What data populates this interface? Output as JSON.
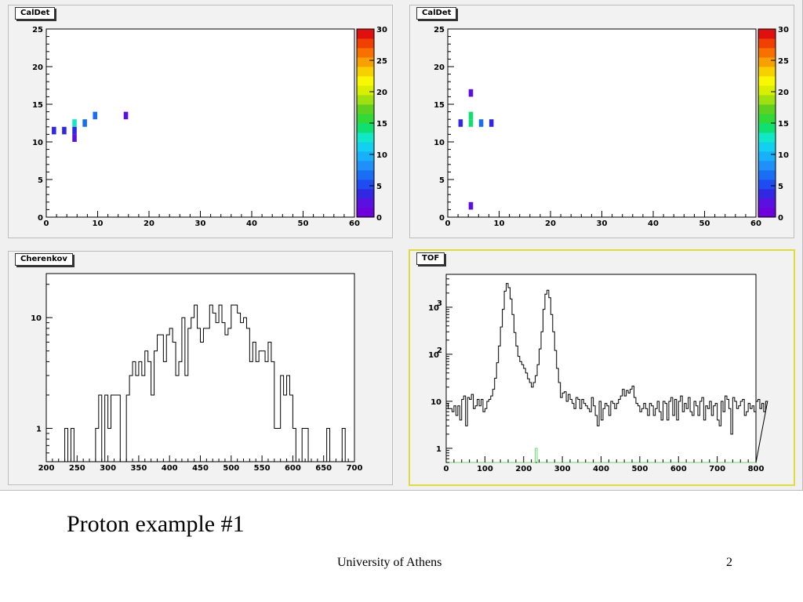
{
  "slide": {
    "title": "Proton example #1",
    "footer": "University of Athens",
    "page_number": "2"
  },
  "pads": {
    "caldet_left": {
      "label": "CalDet"
    },
    "caldet_right": {
      "label": "CalDet"
    },
    "cherenkov": {
      "label": "Cherenkov"
    },
    "tof": {
      "label": "TOF"
    }
  },
  "palette": [
    "#6e00dc",
    "#5a10e0",
    "#3228e4",
    "#1e4cf0",
    "#1a6ef4",
    "#1e90f8",
    "#18b0f8",
    "#14d0f0",
    "#10e8c8",
    "#10e070",
    "#30d838",
    "#60d020",
    "#a0e010",
    "#d8f000",
    "#f8f800",
    "#f8d000",
    "#f8a000",
    "#f87000",
    "#f04000",
    "#e01010"
  ],
  "chart_data": [
    {
      "type": "heatmap",
      "title": "CalDet",
      "xlim": [
        0,
        60
      ],
      "ylim": [
        0,
        25
      ],
      "x_ticks": [
        0,
        10,
        20,
        30,
        40,
        50,
        60
      ],
      "y_ticks": [
        0,
        5,
        10,
        15,
        20,
        25
      ],
      "z_range": [
        0,
        30
      ],
      "z_ticks": [
        0,
        5,
        10,
        15,
        20,
        25,
        30
      ],
      "cells": [
        {
          "x": 1,
          "y": 11,
          "z": 3
        },
        {
          "x": 3,
          "y": 11,
          "z": 3
        },
        {
          "x": 5,
          "y": 12,
          "z": 12
        },
        {
          "x": 5,
          "y": 11,
          "z": 3
        },
        {
          "x": 5,
          "y": 10,
          "z": 2
        },
        {
          "x": 7,
          "y": 12,
          "z": 6
        },
        {
          "x": 9,
          "y": 13,
          "z": 6
        },
        {
          "x": 15,
          "y": 13,
          "z": 2
        }
      ]
    },
    {
      "type": "heatmap",
      "title": "CalDet",
      "xlim": [
        0,
        60
      ],
      "ylim": [
        0,
        25
      ],
      "x_ticks": [
        0,
        10,
        20,
        30,
        40,
        50,
        60
      ],
      "y_ticks": [
        0,
        5,
        10,
        15,
        20,
        25
      ],
      "z_range": [
        0,
        30
      ],
      "z_ticks": [
        0,
        5,
        10,
        15,
        20,
        25,
        30
      ],
      "cells": [
        {
          "x": 4,
          "y": 16,
          "z": 2
        },
        {
          "x": 2,
          "y": 12,
          "z": 3
        },
        {
          "x": 4,
          "y": 13,
          "z": 14
        },
        {
          "x": 4,
          "y": 12,
          "z": 14
        },
        {
          "x": 6,
          "y": 12,
          "z": 6
        },
        {
          "x": 8,
          "y": 12,
          "z": 3
        },
        {
          "x": 4,
          "y": 1,
          "z": 2
        }
      ]
    },
    {
      "type": "histogram",
      "title": "Cherenkov",
      "log_y": true,
      "xlim": [
        200,
        700
      ],
      "ylim": [
        0.5,
        25
      ],
      "x_ticks": [
        200,
        250,
        300,
        350,
        400,
        450,
        500,
        550,
        600,
        650,
        700
      ],
      "y_ticks": [
        1,
        10
      ],
      "bin_width": 5,
      "values": [
        0,
        0,
        0,
        0,
        0,
        0,
        1,
        0,
        1,
        0,
        0,
        0,
        0,
        0,
        0,
        0,
        1,
        2,
        0,
        2,
        1,
        2,
        2,
        2,
        0,
        0,
        2,
        3,
        4,
        3,
        4,
        3,
        5,
        4,
        2,
        5,
        7,
        7,
        4,
        7,
        8,
        6,
        3,
        4,
        10,
        3,
        8,
        10,
        13,
        8,
        6,
        8,
        8,
        13,
        11,
        9,
        13,
        9,
        7,
        8,
        13,
        13,
        11,
        9,
        10,
        8,
        4,
        6,
        4,
        5,
        5,
        4,
        6,
        4,
        1,
        1,
        3,
        2,
        3,
        2,
        1,
        0,
        0,
        1,
        1,
        0,
        0,
        0,
        0,
        0,
        0,
        1,
        0,
        0,
        0,
        0,
        1,
        0,
        0,
        0
      ],
      "color": "#000000"
    },
    {
      "type": "histogram",
      "title": "TOF",
      "log_y": true,
      "xlim": [
        0,
        800
      ],
      "ylim": [
        0.5,
        5000
      ],
      "x_ticks": [
        0,
        100,
        200,
        300,
        400,
        500,
        600,
        700,
        800
      ],
      "y_ticks": [
        1,
        10,
        100,
        1000
      ],
      "bin_width": 5,
      "series": [
        {
          "color": "#000000",
          "values": [
            9,
            7,
            7,
            6,
            8,
            5,
            8,
            4,
            11,
            13,
            3,
            12,
            11,
            14,
            7,
            8,
            11,
            8,
            11,
            6,
            7,
            10,
            11,
            13,
            18,
            31,
            66,
            150,
            380,
            900,
            2200,
            3200,
            2600,
            1500,
            700,
            290,
            150,
            90,
            70,
            60,
            50,
            40,
            30,
            25,
            20,
            25,
            35,
            60,
            130,
            300,
            900,
            1900,
            2300,
            1600,
            700,
            300,
            120,
            50,
            25,
            12,
            15,
            16,
            10,
            14,
            11,
            9,
            7,
            12,
            11,
            7,
            11,
            9,
            8,
            7,
            6,
            12,
            8,
            5,
            3,
            10,
            4,
            7,
            9,
            8,
            5,
            10,
            9,
            7,
            9,
            11,
            13,
            18,
            13,
            17,
            15,
            18,
            21,
            12,
            9,
            8,
            6,
            7,
            9,
            7,
            5,
            9,
            8,
            5,
            7,
            10,
            6,
            4,
            10,
            9,
            4,
            10,
            12,
            5,
            11,
            4,
            10,
            13,
            6,
            9,
            7,
            12,
            6,
            5,
            10,
            8,
            5,
            10,
            12,
            4,
            8,
            7,
            10,
            5,
            8,
            9,
            4,
            3,
            10,
            6,
            13,
            11,
            7,
            2,
            12,
            10,
            7,
            8,
            10,
            11,
            5,
            6,
            9,
            7,
            8,
            6,
            10,
            11,
            7,
            9,
            6,
            10
          ]
        },
        {
          "color": "#66dd66",
          "values": [
            0,
            0,
            0,
            0,
            0,
            0,
            0,
            0,
            0,
            0,
            0,
            0,
            0,
            0,
            0,
            0,
            0,
            0,
            0,
            0,
            0,
            0,
            0,
            0,
            0,
            0,
            0,
            0,
            0,
            0,
            0,
            0,
            0,
            0,
            0,
            0,
            0,
            0,
            0,
            0,
            0,
            0,
            0,
            0,
            0,
            0,
            1,
            0,
            0,
            0,
            0,
            0,
            0,
            0,
            0,
            0,
            0,
            0,
            0,
            0,
            0,
            0,
            0,
            0,
            0,
            0,
            0,
            0,
            0,
            0,
            0,
            0,
            0,
            0,
            0,
            0,
            0,
            0,
            0,
            0,
            0,
            0,
            0,
            0,
            0,
            0,
            0,
            0,
            0,
            0,
            0,
            0,
            0,
            0,
            0,
            0,
            0,
            0,
            0,
            0,
            0,
            0,
            0,
            0,
            0,
            0,
            0,
            0,
            0,
            0,
            0,
            0,
            0,
            0,
            0,
            0,
            0,
            0,
            0,
            0,
            0,
            0,
            0,
            0,
            0,
            0,
            0,
            0,
            0,
            0,
            0,
            0,
            0,
            0,
            0,
            0,
            0,
            0,
            0,
            0,
            0,
            0,
            0,
            0,
            0,
            0,
            0,
            0,
            0,
            0,
            0,
            0,
            0,
            0,
            0,
            0,
            0,
            0,
            0,
            0
          ]
        }
      ]
    }
  ]
}
